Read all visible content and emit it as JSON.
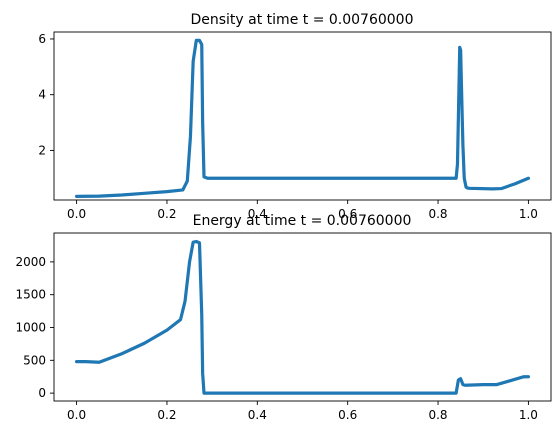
{
  "chart_data": [
    {
      "type": "line",
      "title": "Density at time t =     0.00760000",
      "xlabel": "",
      "ylabel": "",
      "xlim": [
        -0.05,
        1.05
      ],
      "ylim": [
        0.22,
        6.25
      ],
      "xticks": [
        0.0,
        0.2,
        0.4,
        0.6,
        0.8,
        1.0
      ],
      "xtick_labels": [
        "0.0",
        "0.2",
        "0.4",
        "0.6",
        "0.8",
        "1.0"
      ],
      "yticks": [
        2,
        4,
        6
      ],
      "ytick_labels": [
        "2",
        "4",
        "6"
      ],
      "grid": false,
      "line_color": "#1f77b4",
      "series": [
        {
          "x": [
            0.0,
            0.05,
            0.1,
            0.15,
            0.2,
            0.235,
            0.245,
            0.252,
            0.258,
            0.265,
            0.272,
            0.277,
            0.279,
            0.282,
            0.29,
            0.4,
            0.5,
            0.6,
            0.7,
            0.8,
            0.84,
            0.843,
            0.846,
            0.848,
            0.85,
            0.852,
            0.855,
            0.858,
            0.862,
            0.865,
            0.87,
            0.92,
            0.94,
            0.97,
            1.0
          ],
          "y": [
            0.35,
            0.36,
            0.4,
            0.46,
            0.52,
            0.58,
            0.9,
            2.5,
            5.2,
            5.95,
            5.95,
            5.8,
            3.0,
            1.05,
            1.0,
            1.0,
            1.0,
            1.0,
            1.0,
            1.0,
            1.0,
            1.5,
            4.0,
            5.7,
            5.6,
            4.2,
            2.2,
            1.0,
            0.68,
            0.65,
            0.64,
            0.62,
            0.63,
            0.8,
            1.0
          ]
        }
      ]
    },
    {
      "type": "line",
      "title": "Energy at time t =     0.00760000",
      "xlabel": "",
      "ylabel": "",
      "xlim": [
        -0.05,
        1.05
      ],
      "ylim": [
        -120,
        2440
      ],
      "xticks": [
        0.0,
        0.2,
        0.4,
        0.6,
        0.8,
        1.0
      ],
      "xtick_labels": [
        "0.0",
        "0.2",
        "0.4",
        "0.6",
        "0.8",
        "1.0"
      ],
      "yticks": [
        0,
        500,
        1000,
        1500,
        2000
      ],
      "ytick_labels": [
        "0",
        "500",
        "1000",
        "1500",
        "2000"
      ],
      "grid": false,
      "line_color": "#1f77b4",
      "series": [
        {
          "x": [
            0.0,
            0.02,
            0.05,
            0.1,
            0.15,
            0.2,
            0.23,
            0.24,
            0.25,
            0.258,
            0.265,
            0.272,
            0.277,
            0.279,
            0.282,
            0.29,
            0.4,
            0.5,
            0.6,
            0.7,
            0.8,
            0.84,
            0.845,
            0.85,
            0.855,
            0.86,
            0.9,
            0.93,
            0.96,
            0.99,
            1.0
          ],
          "y": [
            480,
            480,
            470,
            600,
            760,
            960,
            1120,
            1400,
            2000,
            2300,
            2310,
            2290,
            1200,
            300,
            0,
            0,
            0,
            0,
            0,
            0,
            0,
            0,
            200,
            220,
            130,
            120,
            130,
            130,
            190,
            250,
            250
          ]
        }
      ]
    }
  ]
}
